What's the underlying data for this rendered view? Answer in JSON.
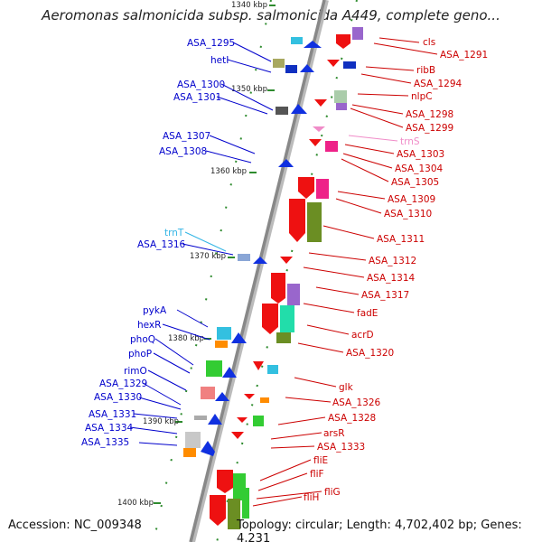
{
  "map": {
    "title": "Aeromonas salmonicida subsp. salmonicida A449, complete geno...",
    "accession": "Accession: NC_009348",
    "summary": "Topology: circular; Length: 4,702,402 bp; Genes: 4,231",
    "colors": {
      "forward_label": "#cc0000",
      "reverse_label": "#0000cc",
      "trna_label": "#33b5e5",
      "trna_forward_label": "#f08cc8",
      "backbone": "#888888",
      "tick_mark": "#2e8b2e"
    }
  },
  "scale": [
    "1340 kbp",
    "1350 kbp",
    "1360 kbp",
    "1370 kbp",
    "1380 kbp",
    "1390 kbp",
    "1400 kbp"
  ],
  "genes_left": [
    "ASA_1295",
    "hetI",
    "ASA_1300",
    "ASA_1301",
    "ASA_1307",
    "ASA_1308",
    "trnT",
    "ASA_1316",
    "pykA",
    "hexR",
    "phoQ",
    "phoP",
    "rimO",
    "ASA_1329",
    "ASA_1330",
    "ASA_1331",
    "ASA_1334",
    "ASA_1335"
  ],
  "genes_right": [
    "cls",
    "ASA_1291",
    "ribB",
    "ASA_1294",
    "nlpC",
    "ASA_1298",
    "ASA_1299",
    "trnS",
    "ASA_1303",
    "ASA_1304",
    "ASA_1305",
    "ASA_1309",
    "ASA_1310",
    "ASA_1311",
    "ASA_1312",
    "ASA_1314",
    "ASA_1317",
    "fadE",
    "acrD",
    "ASA_1320",
    "glk",
    "ASA_1326",
    "ASA_1328",
    "arsR",
    "ASA_1333",
    "fliE",
    "fliF",
    "fliG",
    "fliH"
  ]
}
